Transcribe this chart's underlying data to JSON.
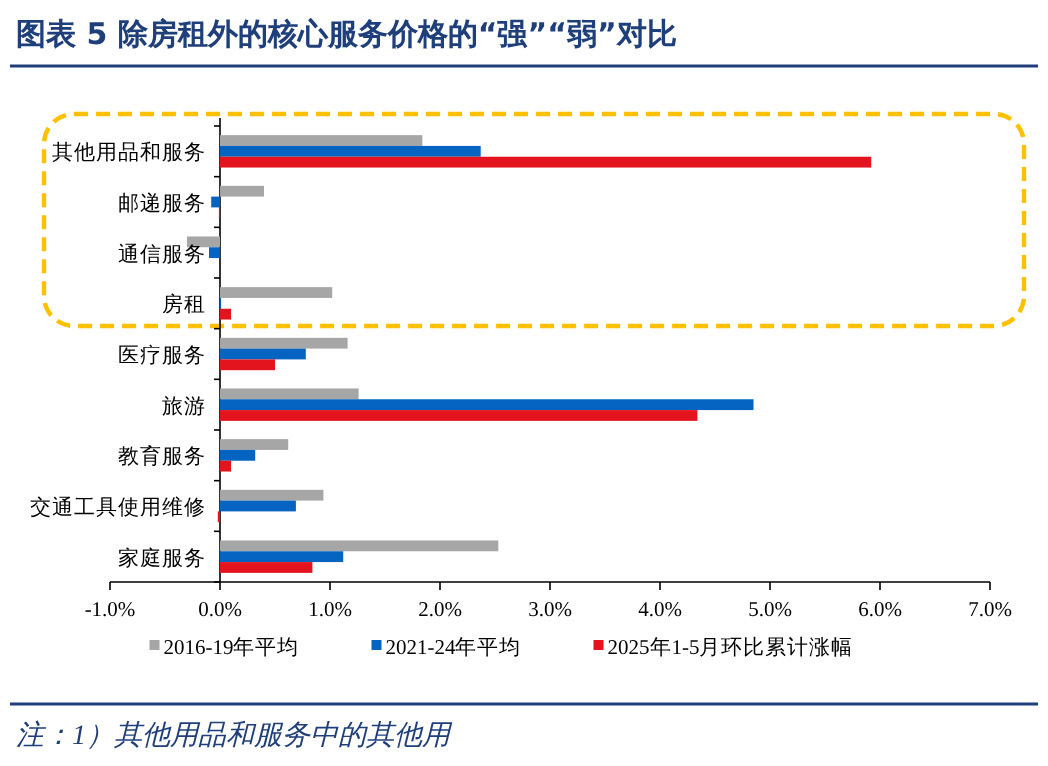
{
  "chart_data": {
    "type": "bar",
    "orientation": "horizontal",
    "title": "图表 5   除房租外的核心服务价格的“强”“弱”对比",
    "categories": [
      "其他用品和服务",
      "邮递服务",
      "通信服务",
      "房租",
      "医疗服务",
      "旅游",
      "教育服务",
      "交通工具使用维修",
      "家庭服务"
    ],
    "series": [
      {
        "name": "2016-19年平均",
        "color": "#a6a6a6",
        "values": [
          1.84,
          0.4,
          -0.3,
          1.02,
          1.16,
          1.26,
          0.62,
          0.94,
          2.53
        ]
      },
      {
        "name": "2021-24年平均",
        "color": "#0563c1",
        "values": [
          2.37,
          -0.08,
          -0.1,
          0.01,
          0.78,
          4.85,
          0.32,
          0.69,
          1.12
        ]
      },
      {
        "name": "2025年1-5月环比累计涨幅",
        "color": "#e3141e",
        "values": [
          5.92,
          -0.01,
          0.0,
          0.1,
          0.5,
          4.34,
          0.1,
          -0.02,
          0.84
        ]
      }
    ],
    "xlim": [
      -1,
      7
    ],
    "xticks": [
      {
        "value": -1,
        "label": "-1.0%"
      },
      {
        "value": 0,
        "label": "0.0%"
      },
      {
        "value": 1,
        "label": "1.0%"
      },
      {
        "value": 2,
        "label": "2.0%"
      },
      {
        "value": 3,
        "label": "3.0%"
      },
      {
        "value": 4,
        "label": "4.0%"
      },
      {
        "value": 5,
        "label": "5.0%"
      },
      {
        "value": 6,
        "label": "6.0%"
      },
      {
        "value": 7,
        "label": "7.0%"
      }
    ],
    "legend": "bottom",
    "annotations": [
      "注：1）其他用品和服务中的其他用"
    ]
  }
}
